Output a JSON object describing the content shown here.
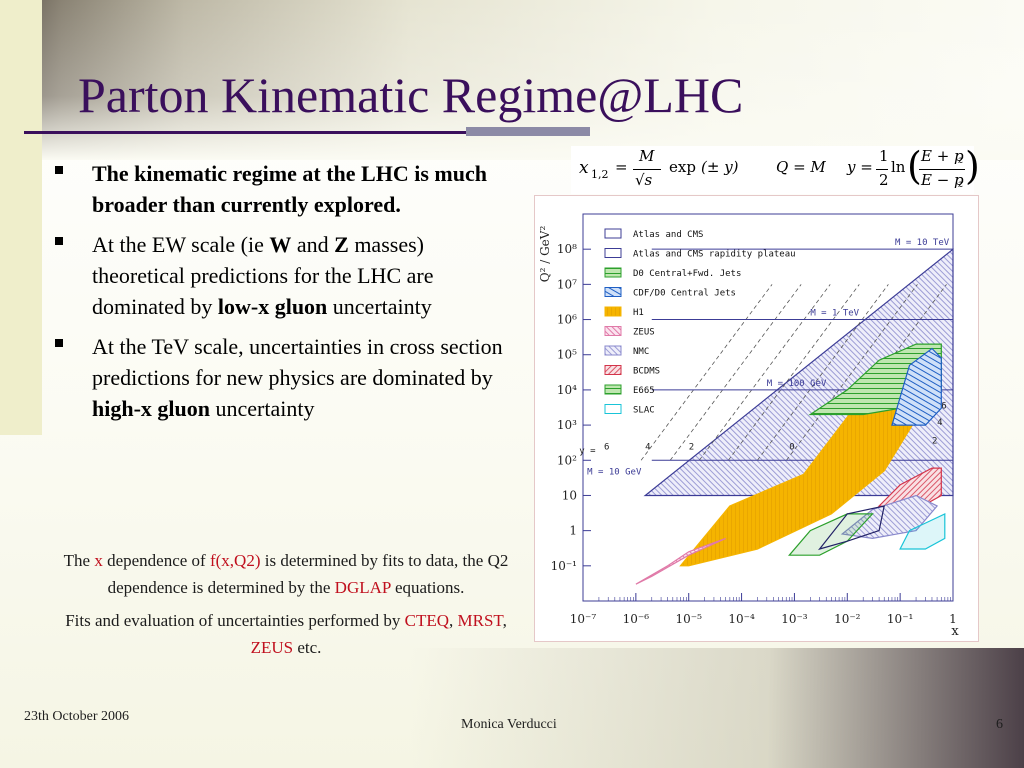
{
  "slide": {
    "title": "Parton Kinematic Regime@LHC",
    "bullets": [
      {
        "runs": [
          {
            "text": "The kinematic regime at the LHC is much broader than currently explored.",
            "bold": true
          }
        ]
      },
      {
        "runs": [
          {
            "text": "At the EW scale (ie ",
            "bold": false
          },
          {
            "text": "W",
            "bold": true
          },
          {
            "text": " and ",
            "bold": false
          },
          {
            "text": "Z",
            "bold": true
          },
          {
            "text": " masses) theoretical predictions for the LHC are dominated by ",
            "bold": false
          },
          {
            "text": "low-x gluon",
            "bold": true
          },
          {
            "text": " uncertainty",
            "bold": false
          }
        ]
      },
      {
        "runs": [
          {
            "text": "At the TeV scale, uncertainties in cross section predictions for new physics are dominated by ",
            "bold": false
          },
          {
            "text": "high-x gluon",
            "bold": true
          },
          {
            "text": " uncertainty",
            "bold": false
          }
        ]
      }
    ],
    "notes": [
      {
        "runs": [
          {
            "text": "The ",
            "red": false
          },
          {
            "text": "x",
            "red": true
          },
          {
            "text": " dependence of  ",
            "red": false
          },
          {
            "text": "f(x,Q2)",
            "red": true
          },
          {
            "text": " is determined by fits to data, the Q2 dependence  is determined by the ",
            "red": false
          },
          {
            "text": "DGLAP",
            "red": true
          },
          {
            "text": " equations.",
            "red": false
          }
        ]
      },
      {
        "runs": [
          {
            "text": "Fits and evaluation of uncertainties performed by ",
            "red": false
          },
          {
            "text": "CTEQ",
            "red": true
          },
          {
            "text": ", ",
            "red": false
          },
          {
            "text": "MRST",
            "red": true
          },
          {
            "text": ", ",
            "red": false
          },
          {
            "text": "ZEUS",
            "red": true
          },
          {
            "text": " etc.",
            "red": false
          }
        ]
      }
    ],
    "formula": {
      "x_lhs": "x",
      "x_sub": "1,2",
      "eq": "=",
      "M": "M",
      "sqrt_s": "√s",
      "exp": "exp",
      "pm_y": "(± y)",
      "Q_eq_M": "Q = M",
      "y_eq": "y =",
      "half": "1",
      "two": "2",
      "ln": "ln",
      "E_plus_pz": "E + p",
      "E_minus_pz": "E − p",
      "z": "z"
    },
    "footer": {
      "date": "23th October 2006",
      "author": "Monica Verducci",
      "page": "6"
    },
    "colors": {
      "title": "#3a0f5c",
      "red": "#c0101e",
      "plot_frame": "#3c3c96",
      "h1_orange": "#f5b400",
      "d0_green": "#2ca02c",
      "cdf_blue": "#1f5fc4",
      "zeus_pink": "#e07aa8",
      "bcdms_red": "#d3344a",
      "slac_cyan": "#19c4d8"
    }
  },
  "chart_data": {
    "type": "area",
    "xlabel": "x",
    "ylabel": "Q² / GeV²",
    "xscale": "log",
    "yscale": "log",
    "xlim": [
      1e-07,
      1
    ],
    "ylim": [
      0.01,
      1000000000.0
    ],
    "xtick_labels": [
      "10⁻⁷",
      "10⁻⁶",
      "10⁻⁵",
      "10⁻⁴",
      "10⁻³",
      "10⁻²",
      "10⁻¹",
      "1"
    ],
    "ytick_labels": [
      "10⁻¹",
      "1",
      "10",
      "10²",
      "10³",
      "10⁴",
      "10⁵",
      "10⁶",
      "10⁷",
      "10⁸"
    ],
    "legend_placement": "top-left",
    "legend": [
      {
        "name": "Atlas and CMS",
        "color": "#3c3c96"
      },
      {
        "name": "Atlas and CMS rapidity plateau",
        "color": "#3c3c96"
      },
      {
        "name": "D0 Central+Fwd. Jets",
        "color": "#2ca02c"
      },
      {
        "name": "CDF/D0 Central Jets",
        "color": "#1f5fc4"
      },
      {
        "name": "H1",
        "color": "#f5b400"
      },
      {
        "name": "ZEUS",
        "color": "#e07aa8"
      },
      {
        "name": "NMC",
        "color": "#8888cc"
      },
      {
        "name": "BCDMS",
        "color": "#d3344a"
      },
      {
        "name": "E665",
        "color": "#2ca02c"
      },
      {
        "name": "SLAC",
        "color": "#19c4d8"
      }
    ],
    "mass_lines": [
      {
        "label": "M = 10 TeV",
        "mass_gev": 10000
      },
      {
        "label": "M = 1 TeV",
        "mass_gev": 1000
      },
      {
        "label": "M = 100 GeV",
        "mass_gev": 100
      },
      {
        "label": "M = 10 GeV",
        "mass_gev": 10
      }
    ],
    "rapidity_labels": [
      "y =",
      "6",
      "4",
      "2",
      "0",
      "2",
      "4",
      "6"
    ]
  }
}
